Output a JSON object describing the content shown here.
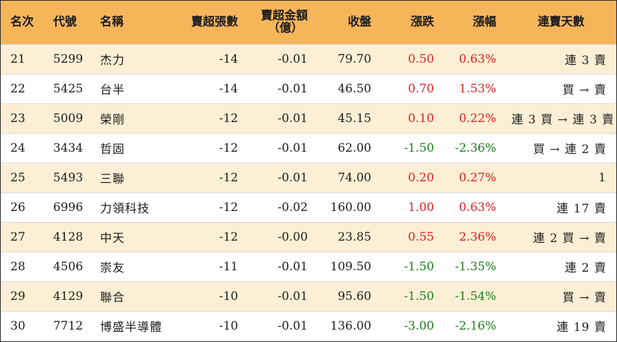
{
  "header": {
    "rank": "名次",
    "code": "代號",
    "name": "名稱",
    "sell_lots": "賣超張數",
    "sell_amount_line1": "賣超金額",
    "sell_amount_line2": "（億）",
    "close": "收盤",
    "change": "漲跌",
    "pct": "漲幅",
    "streak": "連賣天數"
  },
  "rows": [
    {
      "rank": "21",
      "code": "5299",
      "name": "杰力",
      "sell_lots": "-14",
      "sell_amount": "-0.01",
      "close": "79.70",
      "change": "0.50",
      "pct": "0.63%",
      "dir": "up",
      "streak": "連 3 賣"
    },
    {
      "rank": "22",
      "code": "5425",
      "name": "台半",
      "sell_lots": "-14",
      "sell_amount": "-0.01",
      "close": "46.50",
      "change": "0.70",
      "pct": "1.53%",
      "dir": "up",
      "streak": "買 → 賣"
    },
    {
      "rank": "23",
      "code": "5009",
      "name": "榮剛",
      "sell_lots": "-12",
      "sell_amount": "-0.01",
      "close": "45.15",
      "change": "0.10",
      "pct": "0.22%",
      "dir": "up",
      "streak": "連 3 買 → 連 3 賣"
    },
    {
      "rank": "24",
      "code": "3434",
      "name": "哲固",
      "sell_lots": "-12",
      "sell_amount": "-0.01",
      "close": "62.00",
      "change": "-1.50",
      "pct": "-2.36%",
      "dir": "down",
      "streak": "買 → 連 2 賣"
    },
    {
      "rank": "25",
      "code": "5493",
      "name": "三聯",
      "sell_lots": "-12",
      "sell_amount": "-0.01",
      "close": "74.00",
      "change": "0.20",
      "pct": "0.27%",
      "dir": "up",
      "streak": "1"
    },
    {
      "rank": "26",
      "code": "6996",
      "name": "力領科技",
      "sell_lots": "-12",
      "sell_amount": "-0.02",
      "close": "160.00",
      "change": "1.00",
      "pct": "0.63%",
      "dir": "up",
      "streak": "連 17 賣"
    },
    {
      "rank": "27",
      "code": "4128",
      "name": "中天",
      "sell_lots": "-12",
      "sell_amount": "-0.00",
      "close": "23.85",
      "change": "0.55",
      "pct": "2.36%",
      "dir": "up",
      "streak": "連 2 買 → 賣"
    },
    {
      "rank": "28",
      "code": "4506",
      "name": "崇友",
      "sell_lots": "-11",
      "sell_amount": "-0.01",
      "close": "109.50",
      "change": "-1.50",
      "pct": "-1.35%",
      "dir": "down",
      "streak": "連 2 賣"
    },
    {
      "rank": "29",
      "code": "4129",
      "name": "聯合",
      "sell_lots": "-10",
      "sell_amount": "-0.01",
      "close": "95.60",
      "change": "-1.50",
      "pct": "-1.54%",
      "dir": "down",
      "streak": "買 → 賣"
    },
    {
      "rank": "30",
      "code": "7712",
      "name": "博盛半導體",
      "sell_lots": "-10",
      "sell_amount": "-0.01",
      "close": "136.00",
      "change": "-3.00",
      "pct": "-2.16%",
      "dir": "down",
      "streak": "連 19 賣"
    }
  ],
  "colors": {
    "header_bg": "#f7b55a",
    "stripe_bg": "#fdefd5",
    "up": "#e02020",
    "down": "#1a7f1a"
  }
}
